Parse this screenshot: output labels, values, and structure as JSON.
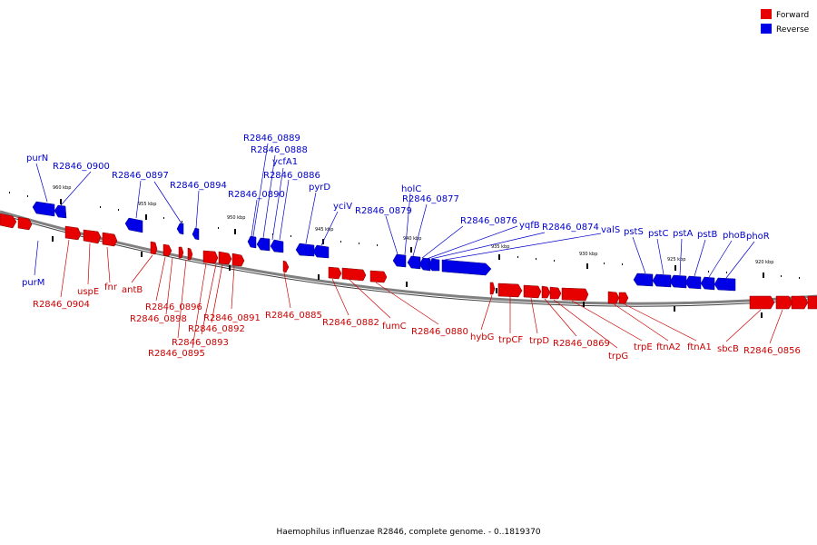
{
  "caption": "Haemophilus influenzae R2846, complete genome. - 0..1819370",
  "legend": {
    "forward": "Forward",
    "reverse": "Reverse"
  },
  "colors": {
    "forward": "#e60000",
    "reverse": "#0000e6",
    "backbone": "#808080",
    "forward_line": "#cc0000",
    "reverse_line": "#0000cc"
  },
  "ticks": [
    "960 kbp",
    "955 kbp",
    "950 kbp",
    "945 kbp",
    "940 kbp",
    "935 kbp",
    "930 kbp",
    "925 kbp",
    "920 kbp"
  ],
  "genes": {
    "reverse": [
      "purN",
      "R2846_0900",
      "R2846_0897",
      "R2846_0894",
      "R2846_0889",
      "R2846_0888",
      "ycfA1",
      "R2846_0886",
      "R2846_0890",
      "pyrD",
      "yciV",
      "holC",
      "R2846_0877",
      "R2846_0879",
      "R2846_0876",
      "yqfB",
      "R2846_0874",
      "valS",
      "pstS",
      "pstC",
      "pstA",
      "pstB",
      "phoB",
      "phoR",
      "purM"
    ],
    "forward": [
      "R2846_0904",
      "uspE",
      "fnr",
      "antB",
      "R2846_0896",
      "R2846_0898",
      "R2846_0891",
      "R2846_0892",
      "R2846_0893",
      "R2846_0895",
      "R2846_0885",
      "R2846_0882",
      "fumC",
      "R2846_0880",
      "hybG",
      "trpCF",
      "trpD",
      "R2846_0869",
      "trpG",
      "trpE",
      "ftnA2",
      "ftnA1",
      "sbcB",
      "R2846_0856"
    ]
  }
}
